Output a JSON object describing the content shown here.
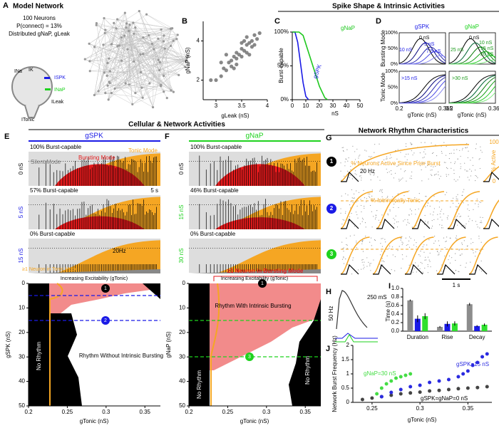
{
  "sections": [
    "Spike Shape & Intrinsic Activities",
    "Cellular & Network Activities",
    "Network Rhythm Characteristics"
  ],
  "panels": {
    "A": {
      "letter": "A",
      "title": "Model Network",
      "info": [
        "100 Neurons",
        "P(connect) = 13%",
        "Distributed gNaP, gLeak"
      ],
      "currents": [
        "INa",
        "IK",
        "ISPK",
        "INaP",
        "ILeak",
        "ITonic"
      ]
    },
    "B": {
      "letter": "B",
      "type": "scatter",
      "xlabel": "gLeak (nS)",
      "ylabel": "gNaP (nS)",
      "xlim": [
        2.75,
        4.0
      ],
      "ylim": [
        1,
        5
      ],
      "xticks": [
        3,
        3.5,
        4
      ],
      "yticks": [
        2,
        4
      ],
      "x": [
        3.0,
        3.1,
        3.15,
        3.2,
        3.25,
        3.3,
        3.3,
        3.35,
        3.4,
        3.4,
        3.45,
        3.5,
        3.5,
        3.55,
        3.6,
        3.6,
        3.65,
        3.7,
        3.7,
        3.75,
        3.8,
        3.85,
        3.2,
        3.4,
        3.55,
        3.65,
        3.35,
        3.1,
        3.5,
        3.75,
        2.9,
        3.6
      ],
      "y": [
        2.0,
        2.2,
        2.6,
        2.5,
        2.9,
        3.0,
        2.7,
        3.2,
        3.1,
        3.4,
        3.3,
        3.6,
        3.2,
        3.5,
        3.8,
        3.4,
        3.9,
        4.0,
        3.7,
        4.3,
        4.1,
        4.4,
        3.3,
        2.8,
        4.0,
        3.3,
        2.6,
        2.9,
        3.9,
        3.8,
        2.0,
        4.2
      ]
    },
    "C": {
      "letter": "C",
      "type": "line",
      "ylabel": "Burst-capable",
      "xlabel": "nS",
      "xlim": [
        0,
        50
      ],
      "ylim": [
        0,
        100
      ],
      "xticks": [
        0,
        10,
        20,
        30,
        40,
        50
      ],
      "yticks": [
        {
          "value": 0,
          "label": "0%"
        },
        {
          "value": 50,
          "label": "50%"
        },
        {
          "value": 100,
          "label": "100%"
        }
      ],
      "series": [
        {
          "name": "gSPK",
          "color": "#1a1ae6",
          "x": [
            0,
            2,
            4,
            6,
            8,
            10,
            12
          ],
          "values": [
            100,
            100,
            85,
            55,
            25,
            5,
            0
          ]
        },
        {
          "name": "gNaP",
          "color": "#1ec81e",
          "x": [
            0,
            5,
            8,
            12,
            16,
            20,
            24,
            26
          ],
          "values": [
            100,
            100,
            95,
            70,
            45,
            20,
            3,
            0
          ]
        }
      ]
    },
    "D": {
      "letter": "D",
      "columns": [
        "gSPK",
        "gNaP"
      ],
      "rows": [
        "Bursting Mode",
        "Tonic Mode"
      ],
      "yticks": [
        "0%",
        "50%",
        "100%"
      ],
      "xticks": [
        "0.2",
        "0.365"
      ],
      "xlabel": "gTonic (nS)",
      "spk_labels": [
        "0 nS",
        "5 nS",
        "7.5 nS",
        "10 nS",
        ">15 nS"
      ],
      "nap_labels": [
        "0 nS",
        "10 nS",
        "15 nS",
        "20 nS",
        "25 nS",
        ">30 nS"
      ]
    },
    "E": {
      "letter": "E",
      "header": "gSPK",
      "rows": [
        "100% Burst-capable",
        "57% Burst-capable",
        "0% Burst-capable"
      ],
      "side": [
        "0 nS",
        "5 nS",
        "15 nS"
      ],
      "modes": [
        "Silent Mode",
        "Bursting Mode",
        "Tonic Mode"
      ],
      "scale_time": "5 s",
      "scale_rate": "20Hz",
      "excitability": "Increasing Excitability (gTonic)",
      "diagram": {
        "xlim": [
          0.2,
          0.37
        ],
        "ylim": [
          0,
          50
        ],
        "y_inverted": true,
        "xticks": [
          0.2,
          0.25,
          0.3,
          0.35
        ],
        "yticks": [
          0,
          10,
          20,
          30,
          40,
          50
        ],
        "xlabel": "gTonic (nS)",
        "ylabel": "gSPK (nS)",
        "annotations": [
          "≥1 Neuron in Tonic Mode",
          "No Rhythm",
          "Rhythm Without Intrinsic Bursting"
        ],
        "markers": [
          "1",
          "2"
        ]
      }
    },
    "F": {
      "letter": "F",
      "header": "gNaP",
      "rows": [
        "100% Burst-capable",
        "46% Burst-capable",
        "0% Burst-capable"
      ],
      "side": [
        "0 nS",
        "15 nS",
        "30 nS"
      ],
      "excitability": "Increasing Excitability (gTonic)",
      "diagram": {
        "xlim": [
          0.2,
          0.37
        ],
        "ylim": [
          0,
          50
        ],
        "y_inverted": true,
        "xticks": [
          0.2,
          0.25,
          0.3,
          0.35
        ],
        "yticks": [
          0,
          10,
          20,
          30,
          40,
          50
        ],
        "xlabel": "gTonic (nS)",
        "ylabel": "gNaP (nS)",
        "annotations": [
          "≥1 Neuron in Bursting Mode",
          "Rhythm With Intrinsic Bursting",
          "No Rhythm",
          "No Rhythm"
        ],
        "markers": [
          "1",
          "3"
        ]
      }
    },
    "G": {
      "letter": "G",
      "active_label": "% Neurons Active Since Prior Burst",
      "axis_right": [
        "100",
        "% Active",
        "0"
      ],
      "scale_rate": "20 Hz",
      "tonic_label": "% Intrinsically Tonic",
      "scale_time": "1 s",
      "markers": [
        "1",
        "2",
        "3"
      ]
    },
    "H": {
      "letter": "H",
      "scale_rate": "50 Hz",
      "scale_time": "250 mS"
    },
    "I": {
      "letter": "I",
      "type": "bar",
      "ylabel": "Time (s)",
      "categories": [
        "Duration",
        "Rise",
        "Decay"
      ],
      "ylim": [
        0,
        1
      ],
      "yticks": [
        {
          "value": 0,
          "label": "0.0"
        },
        {
          "value": 0.2,
          "label": "0.2"
        },
        {
          "value": 0.4,
          "label": "0.4"
        },
        {
          "value": 0.6,
          "label": "0.6"
        },
        {
          "value": 0.8,
          "label": "0.8"
        },
        {
          "value": 1,
          "label": "1.0"
        }
      ],
      "series": [
        {
          "color": "#8c8c8c",
          "values": [
            0.72,
            0.1,
            0.63
          ],
          "errors": [
            0.02,
            0.02,
            0.03
          ]
        },
        {
          "color": "#1a1ae6",
          "values": [
            0.29,
            0.17,
            0.12
          ],
          "errors": [
            0.08,
            0.06,
            0.02
          ]
        },
        {
          "color": "#2ee02e",
          "values": [
            0.35,
            0.18,
            0.15
          ],
          "errors": [
            0.07,
            0.05,
            0.03
          ]
        }
      ]
    },
    "J": {
      "letter": "J",
      "type": "scatter",
      "ylabel": "Network Burst Frequency (Hz)",
      "xlabel": "gTonic (nS)",
      "xlim": [
        0.23,
        0.375
      ],
      "ylim": [
        0,
        2
      ],
      "xticks": [
        0.25,
        0.3,
        0.35
      ],
      "yticks": [
        0,
        0.5,
        1,
        1.5,
        2
      ],
      "annotations": [
        "gSPK=15 nS",
        "gNaP=30 nS",
        "gSPK=gNaP=0 nS"
      ],
      "series": [
        {
          "color": "#444444",
          "x": [
            0.24,
            0.25,
            0.26,
            0.27,
            0.28,
            0.29,
            0.3,
            0.31,
            0.32,
            0.33,
            0.34,
            0.35,
            0.36,
            0.37
          ],
          "values": [
            0.1,
            0.15,
            0.2,
            0.25,
            0.3,
            0.33,
            0.36,
            0.4,
            0.42,
            0.45,
            0.48,
            0.5,
            0.52,
            0.55
          ]
        },
        {
          "color": "#2a2ae0",
          "x": [
            0.26,
            0.27,
            0.28,
            0.29,
            0.3,
            0.31,
            0.32,
            0.33,
            0.34,
            0.345,
            0.35,
            0.355,
            0.36,
            0.365,
            0.37
          ],
          "values": [
            0.2,
            0.35,
            0.45,
            0.55,
            0.6,
            0.7,
            0.75,
            0.8,
            0.9,
            1.0,
            1.1,
            1.3,
            1.4,
            1.6,
            1.7
          ]
        },
        {
          "color": "#44dd44",
          "x": [
            0.255,
            0.26,
            0.265,
            0.27,
            0.275,
            0.28,
            0.285,
            0.29
          ],
          "values": [
            0.3,
            0.5,
            0.65,
            0.75,
            0.85,
            0.9,
            0.95,
            1.0
          ]
        }
      ]
    }
  }
}
